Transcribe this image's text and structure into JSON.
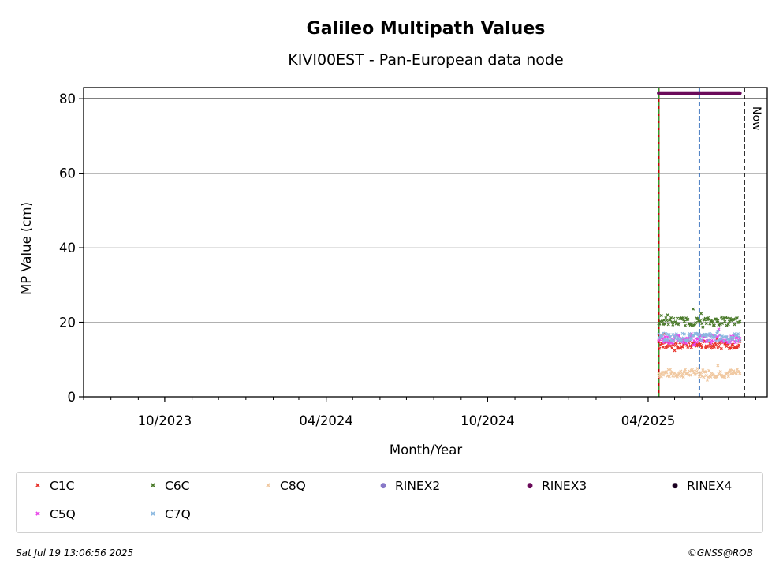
{
  "chart_data": {
    "type": "scatter",
    "title": "Galileo Multipath Values",
    "subtitle": "KIVI00EST - Pan-European data node",
    "xlabel": "Month/Year",
    "ylabel": "MP Value (cm)",
    "x_range": [
      "2023-07-01",
      "2025-08-14"
    ],
    "ylim": [
      0,
      83
    ],
    "yticks": [
      0,
      20,
      40,
      60,
      80
    ],
    "xticks": [
      {
        "date": "2023-10-01",
        "label": "10/2023"
      },
      {
        "date": "2024-04-01",
        "label": "04/2024"
      },
      {
        "date": "2024-10-01",
        "label": "10/2024"
      },
      {
        "date": "2025-04-01",
        "label": "04/2025"
      }
    ],
    "grid": "horizontal",
    "reference_line_y": 80,
    "vlines": [
      {
        "date": "2025-04-13",
        "color": "#c00000",
        "style": "solid"
      },
      {
        "date": "2025-04-13",
        "color": "#2ca02c",
        "style": "dashed"
      },
      {
        "date": "2025-05-29",
        "color": "#1f5fb4",
        "style": "dashed"
      },
      {
        "date": "2025-07-19",
        "color": "#000000",
        "style": "dashed",
        "label": "Now"
      }
    ],
    "data_start": "2025-04-13",
    "data_end": "2025-07-14",
    "series": [
      {
        "name": "C1C",
        "marker": "x",
        "color": "#e8322a",
        "level": 14
      },
      {
        "name": "C5Q",
        "marker": "x",
        "color": "#e845e8",
        "level": 15.5
      },
      {
        "name": "C6C",
        "marker": "x",
        "color": "#4a7a2a",
        "level": 20.2
      },
      {
        "name": "C7Q",
        "marker": "x",
        "color": "#8ab8e0",
        "level": 16
      },
      {
        "name": "C8Q",
        "marker": "x",
        "color": "#f0c8a0",
        "level": 6.3
      },
      {
        "name": "RINEX2",
        "marker": "dot",
        "color": "#8878c8",
        "level": null
      },
      {
        "name": "RINEX3",
        "marker": "dot",
        "color": "#6a0a5a",
        "level": 81.5
      },
      {
        "name": "RINEX4",
        "marker": "dot",
        "color": "#1a0020",
        "level": null
      }
    ],
    "legend": {
      "placement": "bottom",
      "rows": [
        [
          "C1C",
          "C6C",
          "C8Q",
          "RINEX2",
          "RINEX3",
          "RINEX4"
        ],
        [
          "C5Q",
          "C7Q"
        ]
      ]
    }
  },
  "footer": {
    "timestamp": "Sat Jul 19 13:06:56 2025",
    "credit": "©GNSS@ROB"
  }
}
